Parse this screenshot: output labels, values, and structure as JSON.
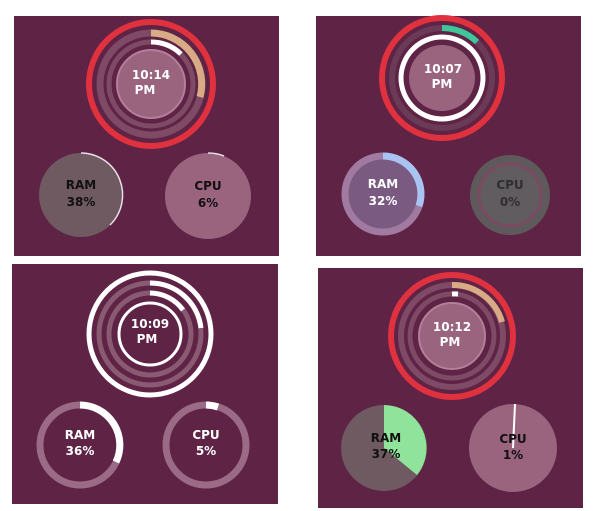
{
  "colors": {
    "panel_bg": "#5e2345",
    "red_accent": "#e0313f",
    "tan_accent": "#d8aa85",
    "green_accent": "#3fc79a",
    "blue_accent": "#a9c4f0",
    "light_green": "#8fe39b",
    "white": "#ffffff"
  },
  "panels": [
    {
      "clock": {
        "hour_min": "10:14",
        "ampm": "PM"
      },
      "ram": {
        "label": "RAM",
        "value": "38%",
        "percent": 38
      },
      "cpu": {
        "label": "CPU",
        "value": "6%",
        "percent": 6
      }
    },
    {
      "clock": {
        "hour_min": "10:07",
        "ampm": "PM"
      },
      "ram": {
        "label": "RAM",
        "value": "32%",
        "percent": 32
      },
      "cpu": {
        "label": "CPU",
        "value": "0%",
        "percent": 0
      }
    },
    {
      "clock": {
        "hour_min": "10:09",
        "ampm": "PM"
      },
      "ram": {
        "label": "RAM",
        "value": "36%",
        "percent": 36
      },
      "cpu": {
        "label": "CPU",
        "value": "5%",
        "percent": 5
      }
    },
    {
      "clock": {
        "hour_min": "10:12",
        "ampm": "PM"
      },
      "ram": {
        "label": "RAM",
        "value": "37%",
        "percent": 37
      },
      "cpu": {
        "label": "CPU",
        "value": "1%",
        "percent": 1
      }
    }
  ]
}
